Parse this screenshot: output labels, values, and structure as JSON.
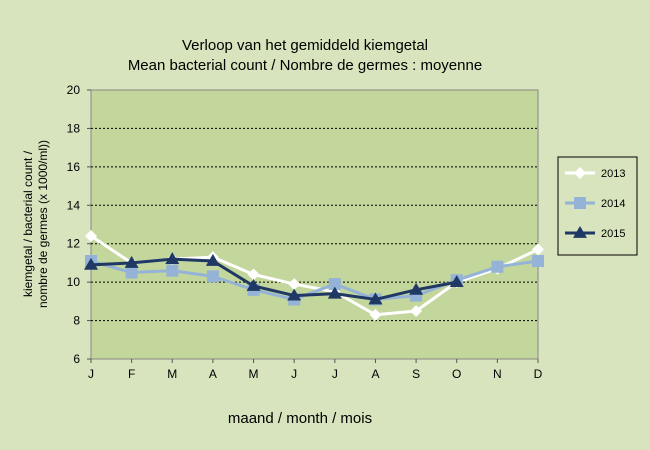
{
  "chart_data": {
    "type": "line",
    "title": "Verloop van  het gemiddeld  kiemgetal",
    "subtitle": "Mean bacterial count / Nombre de germes : moyenne",
    "ylabel_line1": "kiemgetal / bacterial count /",
    "ylabel_line2": "nombre de germes  (x 1000/ml))",
    "xlabel": "maand  / month  / mois",
    "categories": [
      "J",
      "F",
      "M",
      "A",
      "M",
      "J",
      "J",
      "A",
      "S",
      "O",
      "N",
      "D"
    ],
    "ylim": [
      6,
      20
    ],
    "yticks": [
      "6",
      "8",
      "10",
      "12",
      "14",
      "16",
      "18",
      "20"
    ],
    "grid": true,
    "legend_position": "right",
    "series": [
      {
        "name": "2013",
        "color": "#ffffff",
        "marker": "diamond",
        "values": [
          12.4,
          11.0,
          11.2,
          11.3,
          10.4,
          9.9,
          9.5,
          8.3,
          8.5,
          10.0,
          10.7,
          11.7
        ]
      },
      {
        "name": "2014",
        "color": "#95b3d7",
        "marker": "square",
        "values": [
          11.1,
          10.5,
          10.6,
          10.3,
          9.6,
          9.1,
          9.9,
          9.1,
          9.3,
          10.1,
          10.8,
          11.1
        ]
      },
      {
        "name": "2015",
        "color": "#1f3864",
        "marker": "triangle",
        "values": [
          10.9,
          11.0,
          11.2,
          11.1,
          9.8,
          9.3,
          9.4,
          9.1,
          9.6,
          10.0,
          null,
          null
        ]
      }
    ],
    "colors": {
      "background": "#d7e4bd",
      "plot_area": "#c3d69b",
      "legend_bg": "#d7e4bd"
    }
  }
}
